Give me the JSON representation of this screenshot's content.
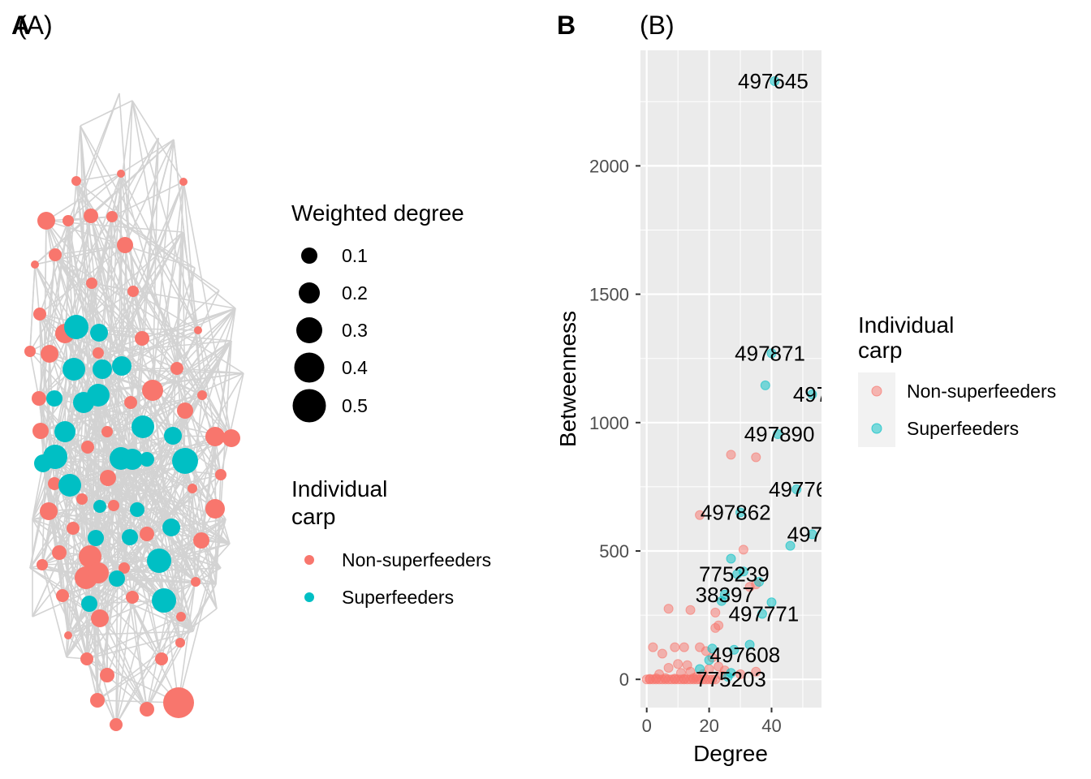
{
  "panel_tags": {
    "a_bold": "A",
    "a_title": "(A)",
    "b_bold": "B",
    "b_title": "(B)"
  },
  "colors": {
    "non_superfeeder": "#F8766D",
    "superfeeder": "#00BFC4",
    "edge": "#D3D3D3",
    "panel_bg": "#EBEBEB",
    "grid": "#FFFFFF",
    "legend_key_bg": "#F2F2F2",
    "axis_text": "#4D4D4D"
  },
  "network_legend": {
    "size_title": "Weighted degree",
    "size_levels": [
      0.1,
      0.2,
      0.3,
      0.4,
      0.5
    ],
    "size_labels": [
      "0.1",
      "0.2",
      "0.3",
      "0.4",
      "0.5"
    ],
    "color_title_line1": "Individual",
    "color_title_line2": "carp",
    "color_labels": [
      "Non-superfeeders",
      "Superfeeders"
    ]
  },
  "chart_data": [
    {
      "type": "network",
      "panel": "A",
      "title": "(A)",
      "legend_size_title": "Weighted degree",
      "legend_color_title": "Individual carp",
      "groups": [
        "Non-superfeeders",
        "Superfeeders"
      ],
      "nodes_note": "node count and positions estimated from the picture"
    },
    {
      "type": "scatter",
      "panel": "B",
      "title": "(B)",
      "xlabel": "Degree",
      "ylabel": "Betweenness",
      "xlim": [
        -2,
        56
      ],
      "ylim": [
        -110,
        2450
      ],
      "xticks": [
        0,
        20,
        40
      ],
      "yticks": [
        0,
        500,
        1000,
        1500,
        2000
      ],
      "grid": true,
      "legend_title_line1": "Individual",
      "legend_title_line2": "carp",
      "legend_position": "right",
      "series": [
        {
          "name": "Non-superfeeders",
          "points": [
            [
              0,
              0
            ],
            [
              1,
              0
            ],
            [
              2,
              0
            ],
            [
              3,
              0
            ],
            [
              4,
              0
            ],
            [
              5,
              0
            ],
            [
              6,
              0
            ],
            [
              7,
              0
            ],
            [
              8,
              0
            ],
            [
              9,
              0
            ],
            [
              10,
              0
            ],
            [
              11,
              0
            ],
            [
              12,
              0
            ],
            [
              13,
              0
            ],
            [
              14,
              0
            ],
            [
              15,
              0
            ],
            [
              16,
              0
            ],
            [
              17,
              0
            ],
            [
              18,
              0
            ],
            [
              19,
              0
            ],
            [
              20,
              0
            ],
            [
              21,
              0
            ],
            [
              22,
              0
            ],
            [
              1,
              2
            ],
            [
              3,
              4
            ],
            [
              6,
              5
            ],
            [
              9,
              3
            ],
            [
              12,
              2
            ],
            [
              15,
              5
            ],
            [
              2,
              125
            ],
            [
              5,
              100
            ],
            [
              9,
              125
            ],
            [
              12,
              125
            ],
            [
              17,
              125
            ],
            [
              19,
              110
            ],
            [
              4,
              20
            ],
            [
              7,
              45
            ],
            [
              10,
              60
            ],
            [
              11,
              25
            ],
            [
              13,
              55
            ],
            [
              14,
              30
            ],
            [
              16,
              10
            ],
            [
              18,
              20
            ],
            [
              20,
              40
            ],
            [
              23,
              50
            ],
            [
              25,
              35
            ],
            [
              30,
              20
            ],
            [
              35,
              30
            ],
            [
              7,
              275
            ],
            [
              14,
              270
            ],
            [
              22,
              260
            ],
            [
              22,
              200
            ],
            [
              23,
              210
            ],
            [
              31,
              505
            ],
            [
              33,
              360
            ],
            [
              35,
              370
            ],
            [
              17,
              640
            ],
            [
              27,
              875
            ],
            [
              35,
              865
            ],
            [
              21,
              85
            ],
            [
              24,
              15
            ]
          ]
        },
        {
          "name": "Superfeeders",
          "points": [
            [
              41,
              2330
            ],
            [
              40,
              1270
            ],
            [
              38,
              1145
            ],
            [
              53,
              1110
            ],
            [
              42,
              955
            ],
            [
              48,
              740
            ],
            [
              30,
              650
            ],
            [
              46,
              520
            ],
            [
              53,
              565
            ],
            [
              27,
              470
            ],
            [
              29,
              410
            ],
            [
              31,
              420
            ],
            [
              36,
              380
            ],
            [
              24,
              305
            ],
            [
              25,
              330
            ],
            [
              40,
              300
            ],
            [
              37,
              255
            ],
            [
              21,
              120
            ],
            [
              33,
              135
            ],
            [
              28,
              115
            ],
            [
              17,
              40
            ],
            [
              27,
              25
            ],
            [
              26,
              10
            ],
            [
              20,
              75
            ]
          ]
        }
      ],
      "annotations": [
        {
          "text": "497645",
          "x": 40.5,
          "y": 2330
        },
        {
          "text": "497871",
          "x": 39.5,
          "y": 1270
        },
        {
          "text": "497",
          "x": 52.5,
          "y": 1110
        },
        {
          "text": "497890",
          "x": 42.5,
          "y": 955
        },
        {
          "text": "49776",
          "x": 48.5,
          "y": 740
        },
        {
          "text": "497862",
          "x": 28.5,
          "y": 650
        },
        {
          "text": "4976",
          "x": 52.5,
          "y": 565
        },
        {
          "text": "775239",
          "x": 28,
          "y": 410
        },
        {
          "text": "38397",
          "x": 25,
          "y": 330
        },
        {
          "text": "497771",
          "x": 37.5,
          "y": 255
        },
        {
          "text": "497608",
          "x": 31.5,
          "y": 95
        },
        {
          "text": "775203",
          "x": 27,
          "y": 0
        }
      ]
    }
  ]
}
